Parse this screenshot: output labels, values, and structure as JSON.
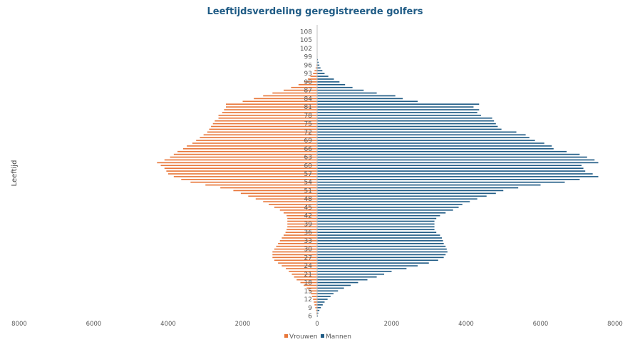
{
  "chart_data": {
    "type": "bar",
    "orientation": "horizontal-population-pyramid",
    "title": "Leeftijdsverdeling geregistreerde golfers",
    "ylabel": "Leeftijd",
    "xlabel": "",
    "xlim": [
      -8000,
      8000
    ],
    "x_ticks": [
      {
        "value": -8000,
        "label": "8000"
      },
      {
        "value": -6000,
        "label": "6000"
      },
      {
        "value": -4000,
        "label": "4000"
      },
      {
        "value": -2000,
        "label": "2000"
      },
      {
        "value": 0,
        "label": "0"
      },
      {
        "value": 2000,
        "label": "2000"
      },
      {
        "value": 4000,
        "label": "4000"
      },
      {
        "value": 6000,
        "label": "6000"
      },
      {
        "value": 8000,
        "label": "8000"
      }
    ],
    "y_tick_labels": [
      "6",
      "9",
      "12",
      "15",
      "18",
      "21",
      "24",
      "27",
      "30",
      "33",
      "36",
      "39",
      "42",
      "45",
      "48",
      "51",
      "54",
      "57",
      "60",
      "63",
      "66",
      "69",
      "72",
      "75",
      "78",
      "81",
      "84",
      "87",
      "90",
      "93",
      "96",
      "99",
      "102",
      "105",
      "108"
    ],
    "ages": [
      6,
      7,
      8,
      9,
      10,
      11,
      12,
      13,
      14,
      15,
      16,
      17,
      18,
      19,
      20,
      21,
      22,
      23,
      24,
      25,
      26,
      27,
      28,
      29,
      30,
      31,
      32,
      33,
      34,
      35,
      36,
      37,
      38,
      39,
      40,
      41,
      42,
      43,
      44,
      45,
      46,
      47,
      48,
      49,
      50,
      51,
      52,
      53,
      54,
      55,
      56,
      57,
      58,
      59,
      60,
      61,
      62,
      63,
      64,
      65,
      66,
      67,
      68,
      69,
      70,
      71,
      72,
      73,
      74,
      75,
      76,
      77,
      78,
      79,
      80,
      81,
      82,
      83,
      84,
      85,
      86,
      87,
      88,
      89,
      90,
      91,
      92,
      93,
      94,
      95,
      96,
      97,
      98,
      99,
      100,
      101,
      102,
      103,
      104,
      105,
      106,
      107,
      108
    ],
    "series": [
      {
        "name": "Vrouwen",
        "color": "#e8773a",
        "values": [
          10,
          20,
          30,
          50,
          70,
          90,
          110,
          140,
          170,
          220,
          280,
          360,
          450,
          550,
          620,
          680,
          760,
          840,
          950,
          1050,
          1150,
          1200,
          1200,
          1200,
          1150,
          1100,
          1050,
          1000,
          950,
          900,
          850,
          820,
          800,
          800,
          800,
          800,
          820,
          900,
          1000,
          1150,
          1300,
          1450,
          1650,
          1850,
          2050,
          2250,
          2600,
          3000,
          3400,
          3650,
          3850,
          4000,
          4050,
          4100,
          4200,
          4300,
          4100,
          3950,
          3850,
          3750,
          3600,
          3500,
          3350,
          3250,
          3150,
          3050,
          2950,
          2900,
          2850,
          2800,
          2750,
          2650,
          2650,
          2550,
          2500,
          2450,
          2450,
          2000,
          1700,
          1450,
          1200,
          900,
          700,
          500,
          350,
          250,
          180,
          110,
          70,
          40,
          20,
          10,
          5,
          3,
          2,
          1,
          1,
          0,
          0,
          0,
          0,
          0,
          0
        ]
      },
      {
        "name": "Mannen",
        "color": "#1f5b85",
        "values": [
          20,
          30,
          60,
          100,
          150,
          200,
          280,
          360,
          440,
          560,
          720,
          900,
          1100,
          1350,
          1600,
          1800,
          2000,
          2400,
          2700,
          3000,
          3250,
          3400,
          3450,
          3500,
          3480,
          3450,
          3400,
          3380,
          3350,
          3300,
          3200,
          3150,
          3150,
          3150,
          3150,
          3200,
          3300,
          3450,
          3650,
          3800,
          3900,
          4100,
          4300,
          4550,
          4800,
          5000,
          5400,
          6000,
          6650,
          7050,
          7550,
          7400,
          7200,
          7150,
          7100,
          7550,
          7450,
          7250,
          7050,
          6700,
          6350,
          6300,
          6100,
          5850,
          5700,
          5600,
          5350,
          4950,
          4850,
          4800,
          4750,
          4700,
          4400,
          4300,
          4350,
          4200,
          4350,
          2700,
          2300,
          2100,
          1600,
          1250,
          950,
          750,
          600,
          450,
          300,
          200,
          140,
          90,
          60,
          40,
          20,
          10,
          5,
          3,
          2,
          1,
          1,
          0,
          0,
          0,
          0
        ]
      }
    ],
    "legend_position": "bottom-center"
  }
}
